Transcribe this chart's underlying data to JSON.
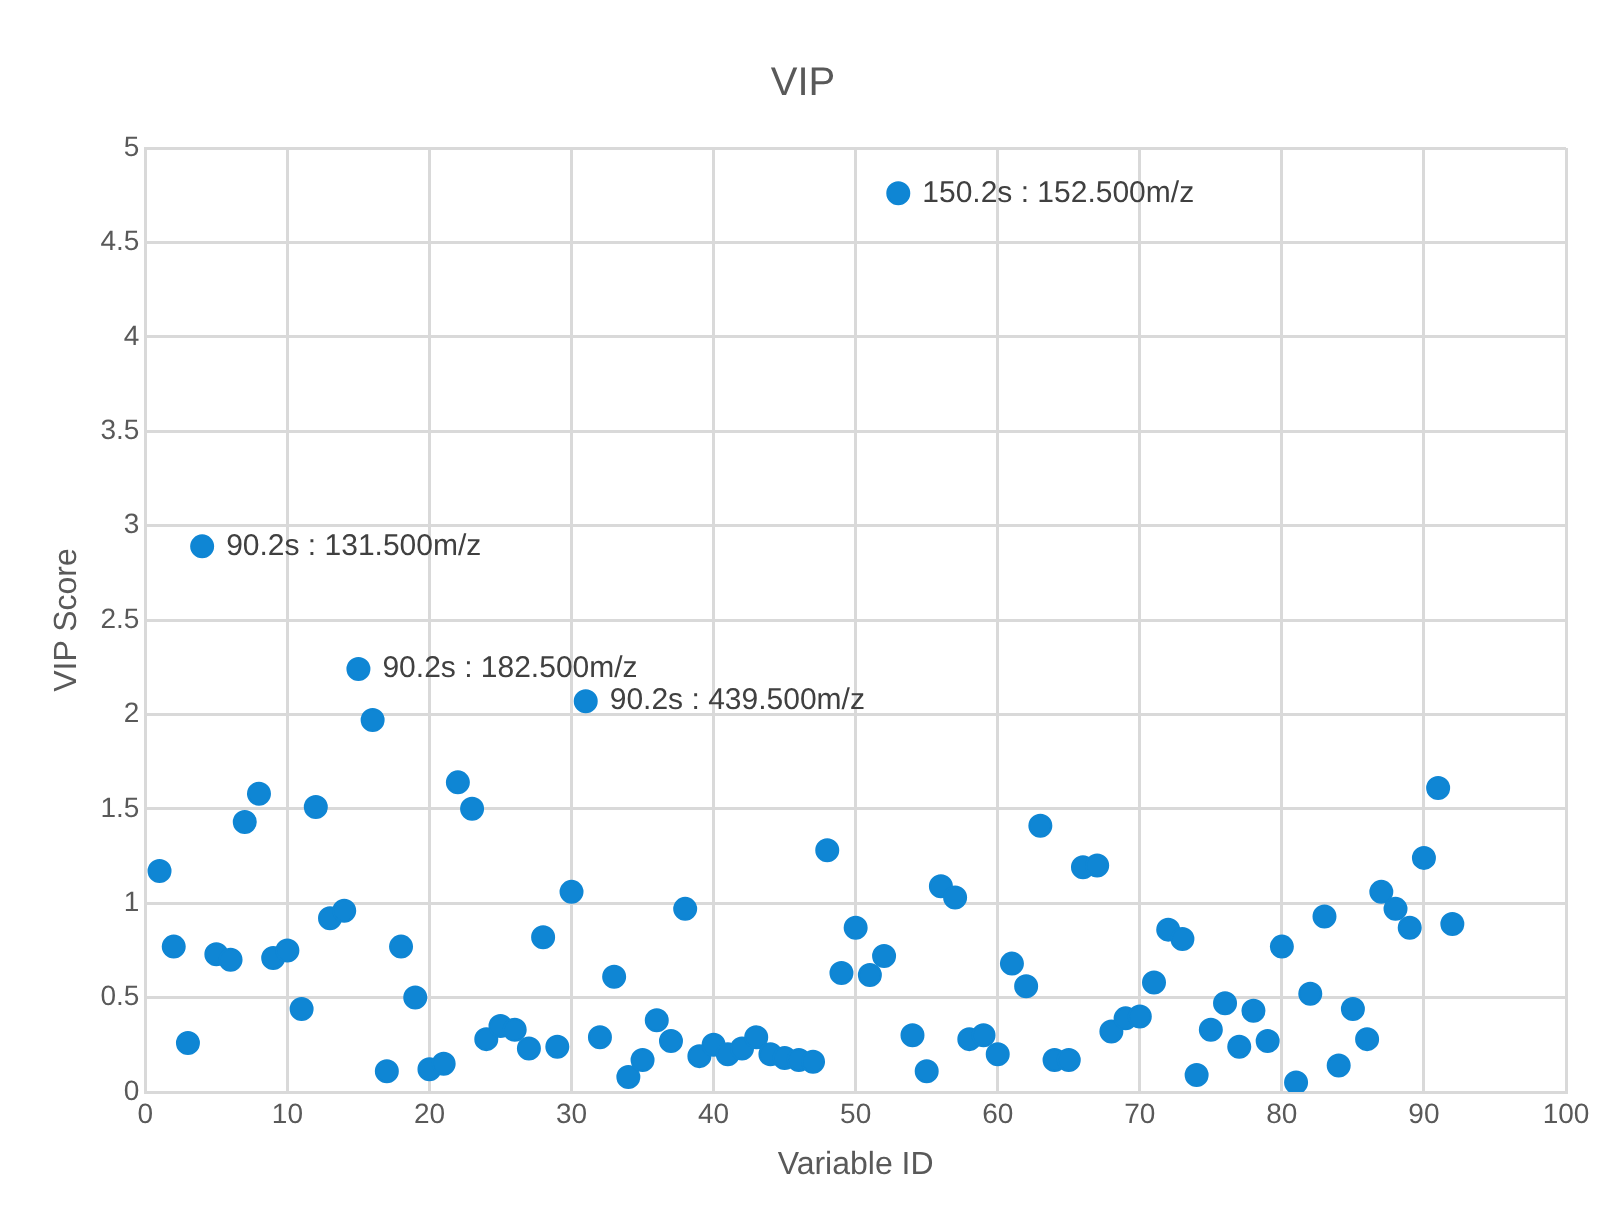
{
  "chart_data": {
    "type": "scatter",
    "title": "VIP",
    "xlabel": "Variable ID",
    "ylabel": "VIP Score",
    "x": [
      1,
      2,
      3,
      4,
      5,
      6,
      7,
      8,
      9,
      10,
      11,
      12,
      13,
      14,
      15,
      16,
      17,
      18,
      19,
      20,
      21,
      22,
      23,
      24,
      25,
      26,
      27,
      28,
      29,
      30,
      31,
      32,
      33,
      34,
      35,
      36,
      37,
      38,
      39,
      40,
      41,
      42,
      43,
      44,
      45,
      46,
      47,
      48,
      49,
      50,
      51,
      52,
      53,
      54,
      55,
      56,
      57,
      58,
      59,
      60,
      61,
      62,
      63,
      64,
      65,
      66,
      67,
      68,
      69,
      70,
      71,
      72,
      73,
      74,
      75,
      76,
      77,
      78,
      79,
      80,
      81,
      82,
      83,
      84,
      85,
      86,
      87,
      88,
      89,
      90,
      91,
      92
    ],
    "series": [
      {
        "color": "#0f86d4",
        "values": [
          1.17,
          0.77,
          0.26,
          2.89,
          0.73,
          0.7,
          1.43,
          1.58,
          0.71,
          0.75,
          0.44,
          1.51,
          0.92,
          0.96,
          2.24,
          1.97,
          0.11,
          0.77,
          0.5,
          0.12,
          0.15,
          1.64,
          1.5,
          0.28,
          0.35,
          0.33,
          0.23,
          0.82,
          0.24,
          1.06,
          2.07,
          0.29,
          0.61,
          0.08,
          0.17,
          0.38,
          0.27,
          0.97,
          0.19,
          0.25,
          0.2,
          0.23,
          0.29,
          0.2,
          0.18,
          0.17,
          0.16,
          1.28,
          0.63,
          0.87,
          0.62,
          0.72,
          4.76,
          0.3,
          0.11,
          1.09,
          1.03,
          0.28,
          0.3,
          0.2,
          0.68,
          0.56,
          1.41,
          0.17,
          0.17,
          1.19,
          1.2,
          0.32,
          0.39,
          0.4,
          0.58,
          0.86,
          0.81,
          0.09,
          0.33,
          0.47,
          0.24,
          0.43,
          0.27,
          0.77,
          0.05,
          0.52,
          0.93,
          0.14,
          0.44,
          0.28,
          1.06,
          0.97,
          0.87,
          1.24,
          1.61,
          0.89
        ]
      }
    ],
    "xlim": [
      0,
      100
    ],
    "xticks": [
      0,
      10,
      20,
      30,
      40,
      50,
      60,
      70,
      80,
      90,
      100
    ],
    "ylim": [
      0,
      5
    ],
    "yticks": [
      0,
      0.5,
      1,
      1.5,
      2,
      2.5,
      3,
      3.5,
      4,
      4.5,
      5
    ],
    "grid": true,
    "marker": "circle",
    "annotations": [
      {
        "text": "150.2s : 152.500m/z",
        "x": 53,
        "y": 4.76
      },
      {
        "text": "90.2s : 131.500m/z",
        "x": 4,
        "y": 2.89
      },
      {
        "text": "90.2s : 182.500m/z",
        "x": 15,
        "y": 2.24
      },
      {
        "text": "90.2s : 439.500m/z",
        "x": 31,
        "y": 2.07
      }
    ]
  }
}
